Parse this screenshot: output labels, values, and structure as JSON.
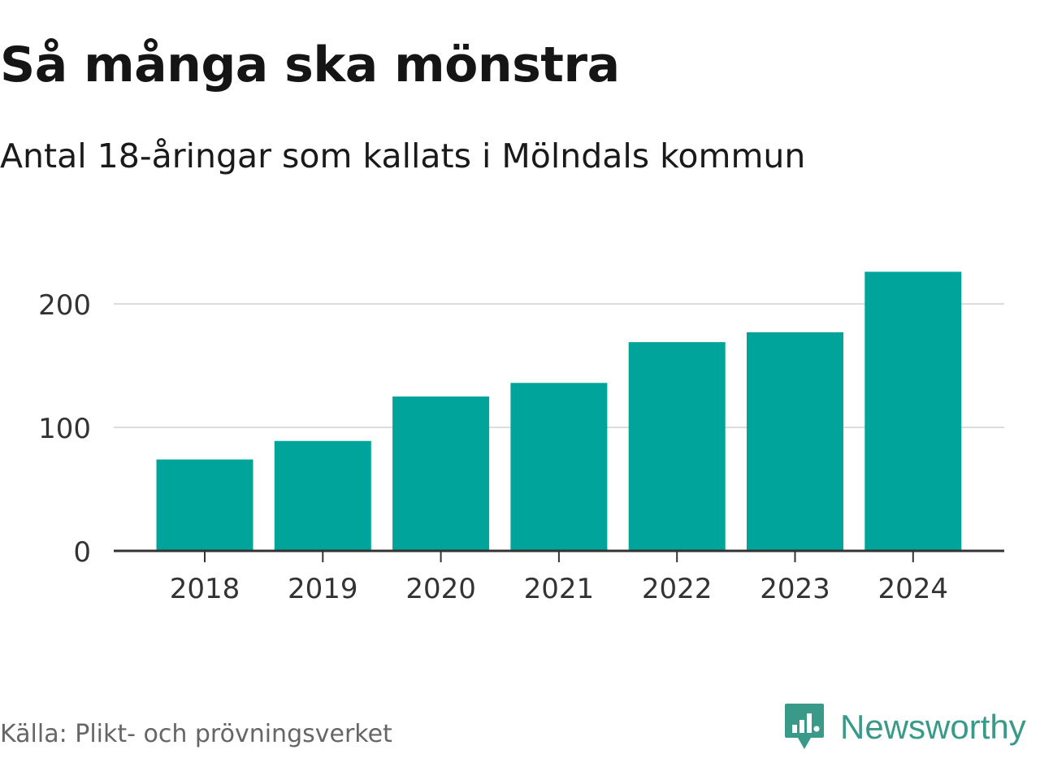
{
  "title": "Så många ska mönstra",
  "subtitle": "Antal 18-åringar som kallats i Mölndals kommun",
  "source": "Källa: Plikt- och prövningsverket",
  "brand": "Newsworthy",
  "colors": {
    "bar": "#00A49A",
    "grid": "#dddddd",
    "axis": "#333333",
    "logo": "#3a9a8a"
  },
  "chart_data": {
    "type": "bar",
    "title": "Så många ska mönstra",
    "subtitle": "Antal 18-åringar som kallats i Mölndals kommun",
    "xlabel": "",
    "ylabel": "",
    "categories": [
      "2018",
      "2019",
      "2020",
      "2021",
      "2022",
      "2023",
      "2024"
    ],
    "values": [
      74,
      89,
      125,
      136,
      169,
      177,
      226
    ],
    "ylim": [
      0,
      240
    ],
    "yticks": [
      0,
      100,
      200
    ],
    "grid": true
  }
}
